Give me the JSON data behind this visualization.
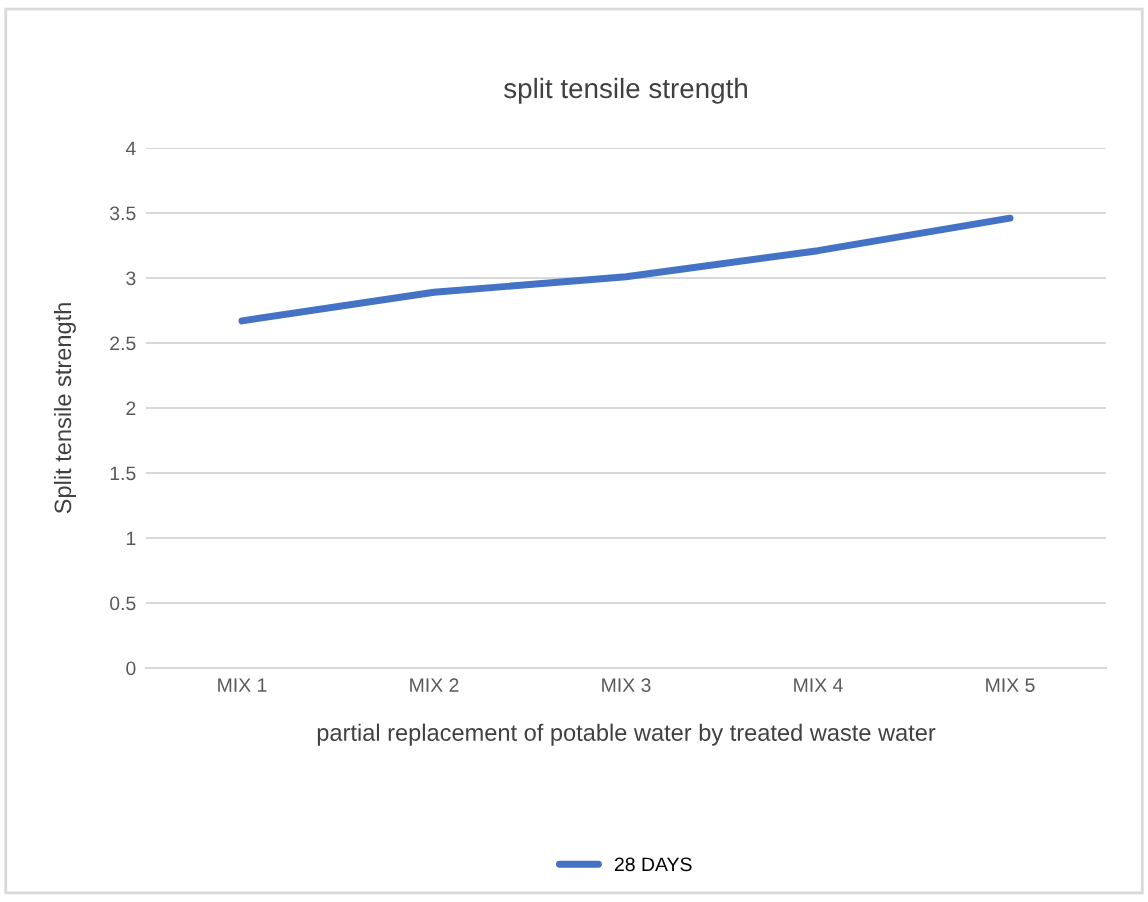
{
  "chart_data": {
    "type": "line",
    "title": "split tensile strength",
    "xlabel": "partial replacement of potable water by treated waste water",
    "ylabel": "Split tensile strength",
    "categories": [
      "MIX 1",
      "MIX 2",
      "MIX 3",
      "MIX 4",
      "MIX 5"
    ],
    "series": [
      {
        "name": "28 DAYS",
        "color": "#4472c4",
        "values": [
          2.67,
          2.89,
          3.01,
          3.21,
          3.46
        ]
      }
    ],
    "ylim": [
      0,
      4
    ],
    "yticks": [
      0,
      0.5,
      1,
      1.5,
      2,
      2.5,
      3,
      3.5,
      4
    ],
    "grid": "y",
    "legend": "bottom",
    "marker": "none",
    "line_style": "solid"
  }
}
